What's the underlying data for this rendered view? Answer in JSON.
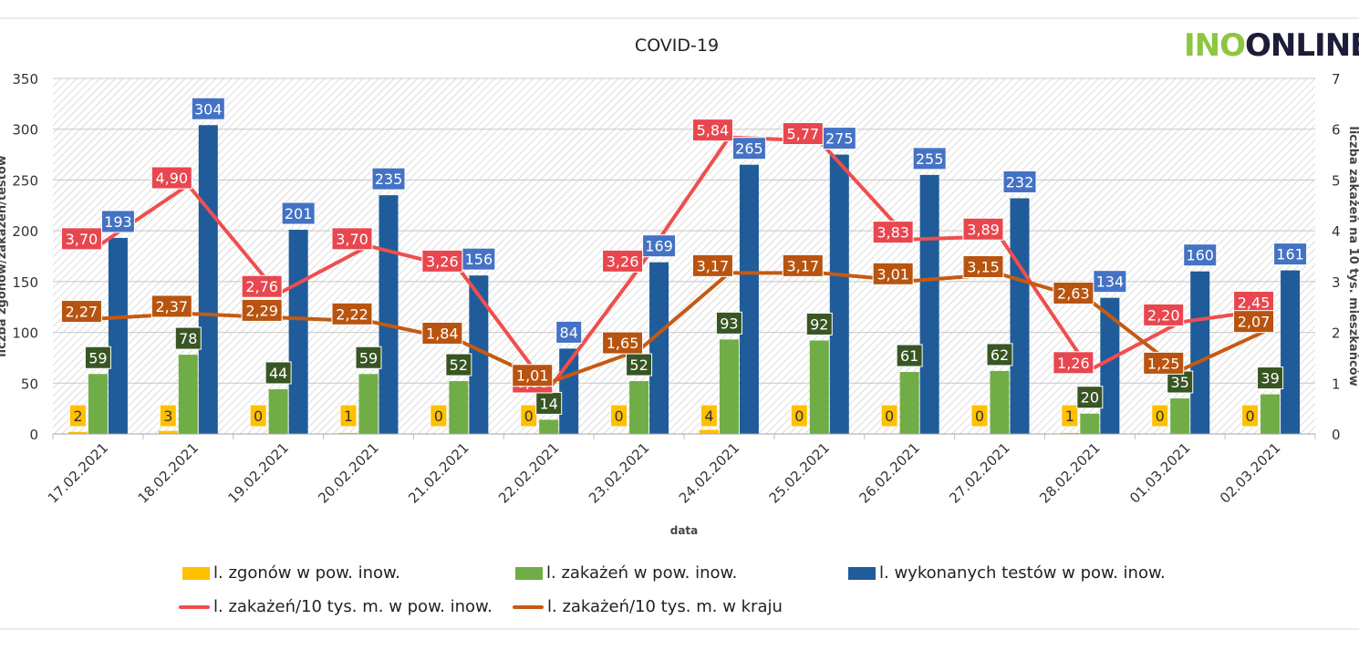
{
  "logo": {
    "part1": "INO",
    "part2": "ONLINE"
  },
  "chart_data": {
    "type": "bar",
    "title": "COVID-19",
    "xlabel": "data",
    "ylabel": "liczba zgonów/zakażeń/testów",
    "y2label": "liczba zakażeń na 10 tys. mieszkańców",
    "ylim": [
      0,
      350
    ],
    "yticks": [
      0,
      50,
      100,
      150,
      200,
      250,
      300,
      350
    ],
    "y2lim": [
      0,
      7
    ],
    "y2ticks": [
      0,
      1,
      2,
      3,
      4,
      5,
      6,
      7
    ],
    "grid": true,
    "categories": [
      "17.02.2021",
      "18.02.2021",
      "19.02.2021",
      "20.02.2021",
      "21.02.2021",
      "22.02.2021",
      "23.02.2021",
      "24.02.2021",
      "25.02.2021",
      "26.02.2021",
      "27.02.2021",
      "28.02.2021",
      "01.03.2021",
      "02.03.2021"
    ],
    "series": [
      {
        "name": "l. zgonów w pow. inow.",
        "kind": "bar",
        "color": "#ffc000",
        "values": [
          2,
          3,
          0,
          1,
          0,
          0,
          0,
          4,
          0,
          0,
          0,
          1,
          0,
          0
        ],
        "labels": [
          "2",
          "3",
          "0",
          "1",
          "0",
          "0",
          "0",
          "4",
          "0",
          "0",
          "0",
          "1",
          "0",
          "0"
        ]
      },
      {
        "name": "l. zakażeń w pow. inow.",
        "kind": "bar",
        "color": "#70ad47",
        "labelColor": "#375623",
        "values": [
          59,
          78,
          44,
          59,
          52,
          14,
          52,
          93,
          92,
          61,
          62,
          20,
          35,
          39
        ],
        "labels": [
          "59",
          "78",
          "44",
          "59",
          "52",
          "14",
          "52",
          "93",
          "92",
          "61",
          "62",
          "20",
          "35",
          "39"
        ]
      },
      {
        "name": "l. wykonanych testów w pow. inow.",
        "kind": "bar",
        "color": "#1f5c99",
        "labelColor": "#4472c4",
        "values": [
          193,
          304,
          201,
          235,
          156,
          84,
          169,
          265,
          275,
          255,
          232,
          134,
          160,
          161
        ],
        "labels": [
          "193",
          "304",
          "201",
          "235",
          "156",
          "84",
          "169",
          "265",
          "275",
          "255",
          "232",
          "134",
          "160",
          "161"
        ]
      },
      {
        "name": "l. zakażeń/10 tys. m. w pow. inow.",
        "kind": "line",
        "axis": "right",
        "color": "#f04e4e",
        "labelColor": "#e8474f",
        "values": [
          3.7,
          4.9,
          2.76,
          3.7,
          3.26,
          0.88,
          3.26,
          5.84,
          5.77,
          3.83,
          3.89,
          1.26,
          2.2,
          2.45
        ],
        "labels": [
          "3,70",
          "4,90",
          "2,76",
          "3,70",
          "3,26",
          "0,88",
          "3,26",
          "5,84",
          "5,77",
          "3,83",
          "3,89",
          "1,26",
          "2,20",
          "2,45"
        ]
      },
      {
        "name": "l. zakażeń/10 tys. m. w kraju",
        "kind": "line",
        "axis": "right",
        "color": "#c55a11",
        "labelColor": "#b85410",
        "values": [
          2.27,
          2.37,
          2.29,
          2.22,
          1.84,
          1.01,
          1.65,
          3.17,
          3.17,
          3.01,
          3.15,
          2.63,
          1.25,
          2.07
        ],
        "labels": [
          "2,27",
          "2,37",
          "2,29",
          "2,22",
          "1,84",
          "1,01",
          "1,65",
          "3,17",
          "3,17",
          "3,01",
          "3,15",
          "2,63",
          "1,25",
          "2,07"
        ]
      }
    ],
    "legend": "bottom"
  }
}
